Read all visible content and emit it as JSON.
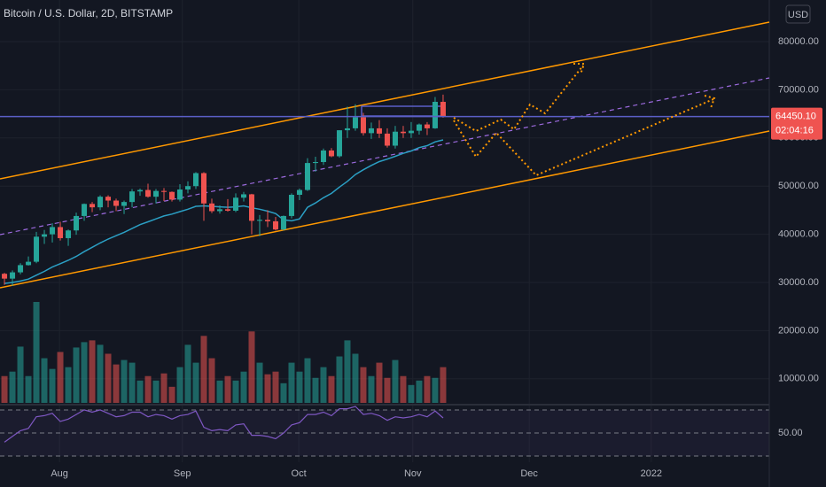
{
  "chart_data": {
    "type": "candlestick",
    "title": "Bitcoin / U.S. Dollar, 2D, BITSTAMP",
    "currency": "USD",
    "open": [
      31800,
      30800,
      32100,
      33600,
      34300,
      39500,
      40000,
      41500,
      39200,
      40800,
      43800,
      46300,
      45600,
      47800,
      47000,
      45900,
      46700,
      48900,
      49200,
      47800,
      49000,
      48800,
      47200,
      49300,
      50000,
      52700,
      46400,
      44800,
      45200,
      44900,
      47600,
      48300,
      42800,
      43000,
      42700,
      41000,
      43800,
      48200,
      49200,
      54800,
      55000,
      57400,
      56200,
      61600,
      62000,
      64300,
      61000,
      62000,
      60900,
      58400,
      61300,
      61000,
      61500,
      62800,
      62000,
      67500
    ],
    "high": [
      32000,
      32500,
      34000,
      35400,
      40500,
      40900,
      42300,
      42600,
      41000,
      44500,
      46400,
      46700,
      48100,
      48100,
      47400,
      47000,
      49400,
      49500,
      50500,
      49400,
      49600,
      48900,
      50400,
      51000,
      52900,
      52900,
      47400,
      46000,
      47300,
      48500,
      48800,
      48400,
      44000,
      45000,
      43600,
      43900,
      48500,
      49500,
      55800,
      56100,
      57800,
      57900,
      61600,
      66500,
      67000,
      65200,
      63200,
      63700,
      62000,
      62500,
      62500,
      63300,
      63000,
      63300,
      68500,
      69000
    ],
    "low": [
      29500,
      29300,
      31700,
      33500,
      34000,
      38000,
      38300,
      38700,
      37600,
      39900,
      42800,
      44600,
      45000,
      45600,
      44800,
      44200,
      45600,
      48000,
      47600,
      46400,
      46900,
      46800,
      46800,
      48500,
      49400,
      42800,
      44400,
      44300,
      44700,
      44600,
      46800,
      40000,
      39600,
      41500,
      40800,
      40800,
      43300,
      47100,
      49000,
      53000,
      54400,
      56000,
      55900,
      60000,
      61500,
      60500,
      59800,
      60000,
      58000,
      57800,
      60000,
      60000,
      60700,
      60600,
      61900,
      64200
    ],
    "close": [
      30800,
      32100,
      33600,
      34300,
      39500,
      40000,
      41500,
      39200,
      40800,
      43800,
      46300,
      45600,
      47800,
      47000,
      45900,
      46700,
      48900,
      49200,
      47800,
      49000,
      48800,
      47200,
      49300,
      50000,
      52700,
      46400,
      44800,
      45200,
      44900,
      47600,
      48300,
      42800,
      43000,
      42700,
      41000,
      43800,
      48200,
      49200,
      54800,
      55000,
      57400,
      56200,
      61600,
      62000,
      64300,
      61000,
      62000,
      60900,
      58400,
      61300,
      61000,
      61500,
      62800,
      62000,
      67500,
      64450.1
    ],
    "up_color": "#26a69a",
    "down_color": "#ef5350",
    "ylim": [
      5000,
      88640
    ],
    "yticks": [
      {
        "value": 10000,
        "label": "10000.00"
      },
      {
        "value": 20000,
        "label": "20000.00"
      },
      {
        "value": 30000,
        "label": "30000.00"
      },
      {
        "value": 40000,
        "label": "40000.00"
      },
      {
        "value": 50000,
        "label": "50000.00"
      },
      {
        "value": 60000,
        "label": "60000.00"
      },
      {
        "value": 70000,
        "label": "70000.00"
      },
      {
        "value": 80000,
        "label": "80000.00"
      }
    ],
    "xlim": [
      -0.56,
      95.9
    ],
    "xticks": [
      {
        "value": 6.9,
        "label": "Aug"
      },
      {
        "value": 22.3,
        "label": "Sep"
      },
      {
        "value": 36.9,
        "label": "Oct"
      },
      {
        "value": 51.2,
        "label": "Nov"
      },
      {
        "value": 65.8,
        "label": "Dec"
      },
      {
        "value": 81.1,
        "label": "2022"
      }
    ],
    "grid": true,
    "last_price": {
      "value": 64450.1,
      "label": "64450.10"
    },
    "countdown": "02:04:16",
    "price_line_color": "#5b5fc7",
    "ma": {
      "color": "#2b9fc4",
      "values": [
        29800,
        30000,
        30300,
        30700,
        31500,
        32300,
        33200,
        33900,
        34600,
        35400,
        36400,
        37300,
        38200,
        39000,
        39700,
        40400,
        41200,
        42000,
        42600,
        43200,
        43800,
        44200,
        44700,
        45200,
        45800,
        45900,
        45800,
        45700,
        45600,
        45700,
        45900,
        45500,
        45200,
        44800,
        44300,
        43000,
        42800,
        43200,
        45600,
        46500,
        47600,
        48500,
        49800,
        51000,
        52400,
        53400,
        54300,
        55100,
        55600,
        56200,
        56800,
        57300,
        58000,
        58400,
        59200,
        59600
      ]
    },
    "volume": {
      "values": [
        30,
        35,
        63,
        30,
        113,
        50,
        38,
        57,
        40,
        62,
        68,
        70,
        65,
        55,
        43,
        48,
        45,
        25,
        30,
        25,
        33,
        18,
        40,
        65,
        45,
        75,
        50,
        25,
        30,
        25,
        35,
        80,
        45,
        32,
        35,
        22,
        45,
        35,
        50,
        28,
        40,
        30,
        52,
        70,
        55,
        40,
        30,
        45,
        28,
        48,
        30,
        20,
        25,
        30,
        28,
        40
      ]
    },
    "rsi": {
      "color": "#7e57c2",
      "values": [
        42,
        47,
        52,
        54,
        64,
        65,
        67,
        60,
        62,
        66,
        70,
        68,
        70,
        67,
        64,
        65,
        68,
        68,
        64,
        66,
        65,
        62,
        65,
        66,
        69,
        55,
        52,
        53,
        52,
        57,
        58,
        48,
        48,
        47,
        45,
        50,
        57,
        59,
        66,
        66,
        68,
        65,
        71,
        71,
        73,
        66,
        67,
        65,
        61,
        64,
        63,
        64,
        66,
        64,
        69,
        63
      ],
      "ylim": [
        24.6,
        73.8
      ],
      "yticks": [
        {
          "value": 50,
          "label": "50.00"
        }
      ],
      "bands": [
        30,
        70
      ]
    }
  }
}
